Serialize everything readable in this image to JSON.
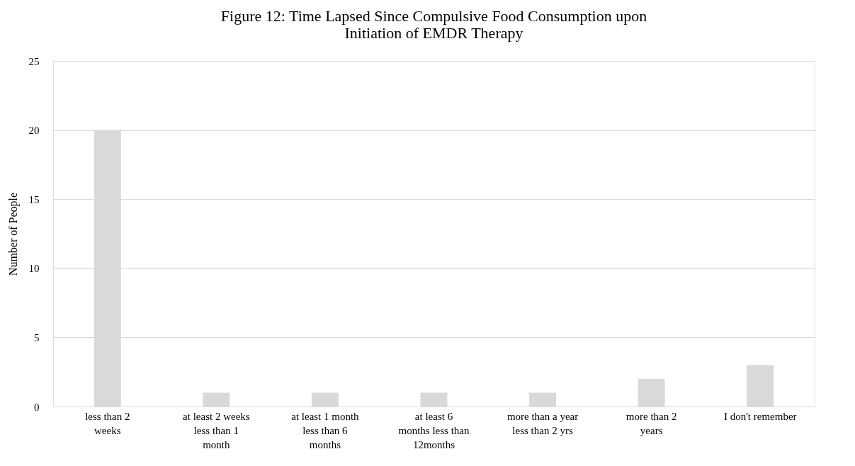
{
  "chart_data": {
    "type": "bar",
    "title": "Figure 12: Time Lapsed Since Compulsive Food Consumption upon Initiation of EMDR Therapy",
    "ylabel": "Number of People",
    "categories": [
      "less than 2 weeks",
      "at least 2 weeks less than 1 month",
      "at least 1 month less than 6 months",
      "at least 6 months less than 12months",
      "more than a year less than 2 yrs",
      "more than 2 years",
      "I don't remember"
    ],
    "values": [
      20,
      1,
      1,
      1,
      1,
      2,
      3
    ],
    "color": "#d9d9d9",
    "ylim": [
      0,
      25
    ],
    "yticks": [
      0,
      5,
      10,
      15,
      20,
      25
    ],
    "grid": "y"
  }
}
